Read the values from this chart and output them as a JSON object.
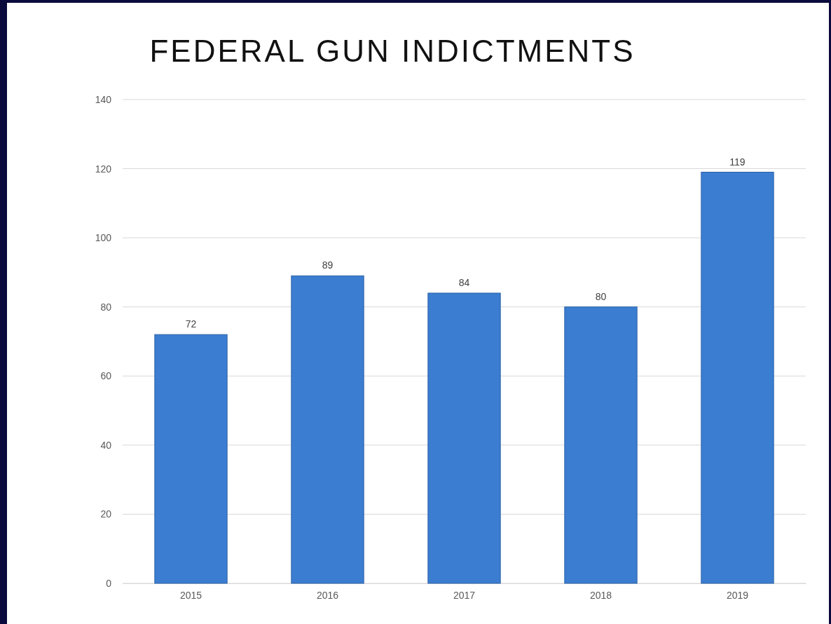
{
  "chart_data": {
    "type": "bar",
    "title": "FEDERAL GUN INDICTMENTS",
    "categories": [
      "2015",
      "2016",
      "2017",
      "2018",
      "2019"
    ],
    "values": [
      72,
      89,
      84,
      80,
      119
    ],
    "color": "#3b7dd0",
    "ylim": [
      0,
      140
    ],
    "yticks": [
      0,
      20,
      40,
      60,
      80,
      100,
      120,
      140
    ],
    "grid": "y",
    "data_labels": true
  }
}
